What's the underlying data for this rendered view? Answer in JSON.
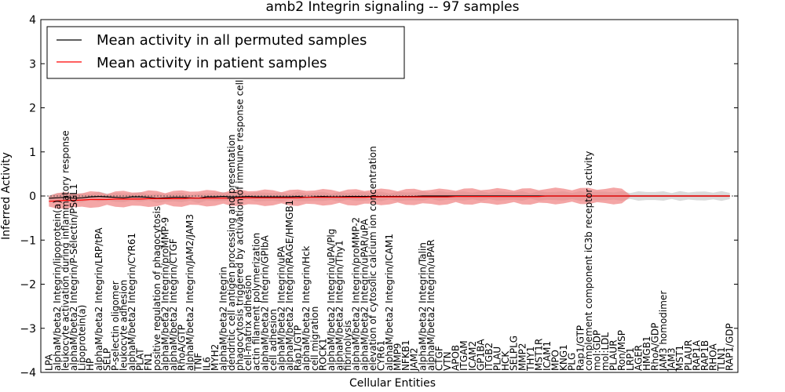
{
  "chart_data": {
    "type": "line",
    "title": "amb2 Integrin signaling -- 97 samples",
    "xlabel": "Cellular Entities",
    "ylabel": "Inferred Activity",
    "ylim": [
      -4,
      4
    ],
    "yticks": [
      "−4",
      "−3",
      "−2",
      "−1",
      "0",
      "1",
      "2",
      "3",
      "4"
    ],
    "legend_position": "top-left",
    "grid": false,
    "colors": {
      "permuted": "#000000",
      "patient": "#ff0000",
      "patient_band": "#f08080",
      "permuted_band": "#bbbbbb"
    },
    "categories": [
      "LPA",
      "alphaM/beta2 Integrin/lipoprotein(a)",
      "leukocyte activation during inflammatory response",
      "alphaM/beta2 Integrin/P-Selectin/PSGL1",
      "Lipoprotein(a)",
      "HP",
      "alphaM/beta2 Integrin/LRP/tPA",
      "SELP",
      "P-selectin oligomer",
      "leukocyte adhesion",
      "alphaM/beta2 Integrin/CYR61",
      "PLAT",
      "FN1",
      "positive regulation of phagocytosis",
      "alphaM/beta2 Integrin/proMMP-9",
      "alphaM/beta2 Integrin/CTGF",
      "RhoA/GTP",
      "alphaM/beta2 Integrin/JAM2/JAM3",
      "TNF",
      "IL6",
      "MYH2",
      "alphaM/beta2 Integrin",
      "dendritic cell antigen processing and presentation",
      "phagocytosis triggered by activation of immune response cell surface",
      "cell-matrix adhesion",
      "actin filament polymerization",
      "alphaM/beta2 Integrin/GPIbA",
      "cell adhesion",
      "alphaM/beta2 Integrin/uPA",
      "alphaM/beta2 Integrin/RAGE/HMGB1",
      "Rap1/GTP",
      "alphaM/beta2 Integrin/Hck",
      "cell migration",
      "ROCK1",
      "alphaM/beta2 Integrin/uPA/Plg",
      "alphaM/beta2 Integrin/Thy1",
      "fibrinolysis",
      "alphaM/beta2 Integrin/proMMP-2",
      "alphaM/beta2 Integrin/uPAR/uPA",
      "elevation of cytosolic calcium ion concentration",
      "CYR61",
      "alphaM/beta2 Integrin/ICAM1",
      "MMP9",
      "NFKB1",
      "JAM2",
      "alphaM/beta2 Integrin/Talin",
      "alphaM/beta2 Integrin/uPAR",
      "CTGF",
      "VTN",
      "APOB",
      "ITGAM",
      "ICAM2",
      "GP1BA",
      "ITGB2",
      "PLAU",
      "HCK",
      "SELPLG",
      "MMP2",
      "THY1",
      "MST1R",
      "ICAM1",
      "MPO",
      "KNG1",
      "PLG",
      "Rap1/GTP",
      "complement component iC3b receptor activity",
      "mol:GDP",
      "mol:LDL",
      "PLAUR",
      "Ron/MSP",
      "LRP1",
      "AGER",
      "HMGB1",
      "RhoA/GDP",
      "JAM3 homodimer",
      "JAM3",
      "MST1",
      "PLAUR",
      "RAP1A",
      "RAP1B",
      "RHOA",
      "TLN1",
      "RAP1/GDP"
    ],
    "series": [
      {
        "name": "Mean activity in all permuted samples",
        "values": [
          -0.05,
          -0.04,
          -0.03,
          -0.05,
          -0.04,
          -0.02,
          -0.01,
          -0.02,
          -0.03,
          -0.04,
          -0.02,
          -0.02,
          -0.03,
          -0.05,
          -0.04,
          -0.03,
          -0.03,
          -0.04,
          -0.05,
          -0.02,
          -0.02,
          -0.01,
          -0.02,
          -0.02,
          -0.01,
          -0.02,
          -0.02,
          -0.02,
          -0.02,
          -0.02,
          -0.01,
          -0.03,
          -0.02,
          -0.01,
          -0.02,
          -0.02,
          -0.01,
          -0.01,
          -0.01,
          -0.01,
          -0.01,
          -0.01,
          -0.01,
          -0.01,
          -0.01,
          0.0,
          0.0,
          0.0,
          0.0,
          0.0,
          0.0,
          0.0,
          0.0,
          0.0,
          0.0,
          0.0,
          0.0,
          0.0,
          0.0,
          0.0,
          0.0,
          0.0,
          0.0,
          0.0,
          0.0,
          0.0,
          0.0,
          0.0,
          0.0,
          0.0,
          0.0,
          0.0,
          0.0,
          0.0,
          0.0,
          0.0,
          0.0,
          0.0,
          0.0,
          0.0,
          0.0,
          0.0,
          0.0
        ]
      },
      {
        "name": "Mean activity in patient samples",
        "values": [
          -0.12,
          -0.11,
          -0.1,
          -0.1,
          -0.09,
          -0.08,
          -0.08,
          -0.08,
          -0.07,
          -0.07,
          -0.07,
          -0.07,
          -0.06,
          -0.06,
          -0.06,
          -0.06,
          -0.06,
          -0.05,
          -0.05,
          -0.05,
          -0.05,
          -0.05,
          -0.05,
          -0.04,
          -0.04,
          -0.04,
          -0.04,
          -0.04,
          -0.04,
          -0.04,
          -0.04,
          -0.03,
          -0.03,
          -0.03,
          -0.03,
          -0.03,
          -0.03,
          -0.03,
          -0.03,
          -0.02,
          -0.02,
          -0.02,
          -0.02,
          -0.02,
          -0.02,
          -0.02,
          -0.02,
          -0.02,
          -0.02,
          -0.01,
          -0.01,
          -0.01,
          -0.01,
          -0.01,
          -0.01,
          -0.01,
          -0.01,
          -0.01,
          -0.01,
          -0.01,
          0.0,
          0.0,
          0.0,
          0.0,
          0.0,
          0.0,
          0.0,
          0.0,
          0.0,
          0.0,
          0.0,
          0.0,
          0.0,
          0.0,
          0.0,
          0.0,
          0.0,
          0.0,
          0.0,
          0.0,
          0.0,
          0.0,
          0.0
        ]
      }
    ]
  }
}
